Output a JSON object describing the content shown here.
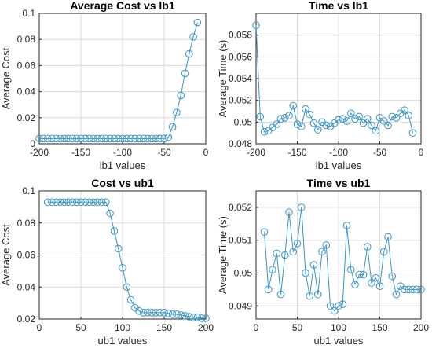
{
  "colors": {
    "series": "#3a93c3",
    "axis": "#262626",
    "grid": "#dcdcdc",
    "background": "#ffffff"
  },
  "chart_data": [
    {
      "type": "line",
      "title": "Average Cost vs lb1",
      "xlabel": "lb1 values",
      "ylabel": "Average Cost",
      "xlim": [
        -200,
        0
      ],
      "ylim": [
        0,
        0.1
      ],
      "xticks": [
        -200,
        -150,
        -100,
        -50,
        0
      ],
      "xtick_labels": [
        "-200",
        "-150",
        "-100",
        "-50",
        "0"
      ],
      "yticks": [
        0,
        0.02,
        0.04,
        0.06,
        0.08,
        0.1
      ],
      "ytick_labels": [
        "0",
        "0.02",
        "0.04",
        "0.06",
        "0.08",
        "0.1"
      ],
      "grid": true,
      "marker": "circle",
      "series": [
        {
          "x": [
            -200,
            -195,
            -190,
            -185,
            -180,
            -175,
            -170,
            -165,
            -160,
            -155,
            -150,
            -145,
            -140,
            -135,
            -130,
            -125,
            -120,
            -115,
            -110,
            -105,
            -100,
            -95,
            -90,
            -85,
            -80,
            -75,
            -70,
            -65,
            -60,
            -55,
            -50,
            -45,
            -40,
            -35,
            -30,
            -25,
            -20,
            -15,
            -10
          ],
          "values": [
            0.004,
            0.004,
            0.004,
            0.004,
            0.004,
            0.004,
            0.004,
            0.004,
            0.004,
            0.004,
            0.004,
            0.004,
            0.004,
            0.004,
            0.004,
            0.004,
            0.004,
            0.004,
            0.004,
            0.004,
            0.004,
            0.004,
            0.004,
            0.004,
            0.004,
            0.004,
            0.004,
            0.004,
            0.004,
            0.004,
            0.004,
            0.005,
            0.013,
            0.024,
            0.037,
            0.054,
            0.069,
            0.082,
            0.093
          ]
        }
      ]
    },
    {
      "type": "line",
      "title": "Time vs lb1",
      "xlabel": "lb1 values",
      "ylabel": "Average Time (s)",
      "xlim": [
        -200,
        0
      ],
      "ylim": [
        0.048,
        0.06
      ],
      "xticks": [
        -200,
        -150,
        -100,
        -50,
        0
      ],
      "xtick_labels": [
        "-200",
        "-150",
        "-100",
        "-50",
        "0"
      ],
      "yticks": [
        0.048,
        0.05,
        0.052,
        0.054,
        0.056,
        0.058
      ],
      "ytick_labels": [
        "0.048",
        "0.05",
        "0.052",
        "0.054",
        "0.056",
        "0.058"
      ],
      "grid": true,
      "marker": "circle",
      "series": [
        {
          "x": [
            -200,
            -195,
            -190,
            -185,
            -180,
            -175,
            -170,
            -165,
            -160,
            -155,
            -150,
            -145,
            -140,
            -135,
            -130,
            -125,
            -120,
            -115,
            -110,
            -105,
            -100,
            -95,
            -90,
            -85,
            -80,
            -75,
            -70,
            -65,
            -60,
            -55,
            -50,
            -45,
            -40,
            -35,
            -30,
            -25,
            -20,
            -15,
            -10
          ],
          "values": [
            0.0589,
            0.0505,
            0.0491,
            0.0492,
            0.0495,
            0.0498,
            0.0503,
            0.0504,
            0.0506,
            0.0515,
            0.0498,
            0.0496,
            0.0512,
            0.0507,
            0.0499,
            0.0493,
            0.05,
            0.0497,
            0.0496,
            0.0499,
            0.0502,
            0.0503,
            0.0501,
            0.0508,
            0.0503,
            0.0505,
            0.0499,
            0.0503,
            0.0497,
            0.0492,
            0.0504,
            0.0501,
            0.0497,
            0.0505,
            0.0504,
            0.0508,
            0.0511,
            0.0506,
            0.049
          ]
        }
      ]
    },
    {
      "type": "line",
      "title": "Cost vs ub1",
      "xlabel": "ub1 values",
      "ylabel": "Average Cost",
      "xlim": [
        0,
        200
      ],
      "ylim": [
        0.02,
        0.1
      ],
      "xticks": [
        0,
        50,
        100,
        150,
        200
      ],
      "xtick_labels": [
        "0",
        "50",
        "100",
        "150",
        "200"
      ],
      "yticks": [
        0.02,
        0.04,
        0.06,
        0.08,
        0.1
      ],
      "ytick_labels": [
        "0.02",
        "0.04",
        "0.06",
        "0.08",
        "0.1"
      ],
      "grid": true,
      "marker": "circle",
      "series": [
        {
          "x": [
            10,
            15,
            20,
            25,
            30,
            35,
            40,
            45,
            50,
            55,
            60,
            65,
            70,
            75,
            80,
            85,
            90,
            95,
            100,
            105,
            110,
            115,
            120,
            125,
            130,
            135,
            140,
            145,
            150,
            155,
            160,
            165,
            170,
            175,
            180,
            185,
            190,
            195,
            200
          ],
          "values": [
            0.093,
            0.093,
            0.093,
            0.093,
            0.093,
            0.093,
            0.093,
            0.093,
            0.093,
            0.093,
            0.093,
            0.093,
            0.093,
            0.093,
            0.093,
            0.086,
            0.075,
            0.064,
            0.052,
            0.04,
            0.032,
            0.027,
            0.025,
            0.024,
            0.024,
            0.024,
            0.024,
            0.024,
            0.024,
            0.0235,
            0.023,
            0.023,
            0.0225,
            0.022,
            0.0215,
            0.021,
            0.021,
            0.0205,
            0.0205
          ]
        }
      ]
    },
    {
      "type": "line",
      "title": "Time vs ub1",
      "xlabel": "ub1 values",
      "ylabel": "Average Time (s)",
      "xlim": [
        0,
        200
      ],
      "ylim": [
        0.0486,
        0.0525
      ],
      "xticks": [
        0,
        50,
        100,
        150,
        200
      ],
      "xtick_labels": [
        "0",
        "50",
        "100",
        "150",
        "200"
      ],
      "yticks": [
        0.049,
        0.05,
        0.051,
        0.052
      ],
      "ytick_labels": [
        "0.049",
        "0.05",
        "0.051",
        "0.052"
      ],
      "grid": true,
      "marker": "circle",
      "series": [
        {
          "x": [
            10,
            15,
            20,
            25,
            30,
            35,
            40,
            45,
            50,
            55,
            60,
            65,
            70,
            75,
            80,
            85,
            90,
            95,
            100,
            105,
            110,
            115,
            120,
            125,
            130,
            135,
            140,
            145,
            150,
            155,
            160,
            165,
            170,
            175,
            180,
            185,
            190,
            195,
            200
          ],
          "values": [
            0.05125,
            0.0495,
            0.0501,
            0.0506,
            0.04935,
            0.05055,
            0.05185,
            0.05065,
            0.0509,
            0.052,
            0.05,
            0.0493,
            0.05025,
            0.04935,
            0.05065,
            0.05085,
            0.049,
            0.04885,
            0.049,
            0.04905,
            0.05145,
            0.0501,
            0.04965,
            0.04995,
            0.04995,
            0.0508,
            0.0497,
            0.04985,
            0.0496,
            0.05065,
            0.0511,
            0.0499,
            0.04935,
            0.0496,
            0.0495,
            0.0495,
            0.0495,
            0.0495,
            0.0495
          ]
        }
      ]
    }
  ]
}
